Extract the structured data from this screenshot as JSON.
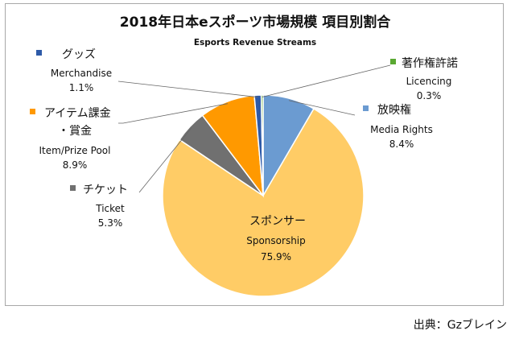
{
  "chart_data": {
    "type": "pie",
    "title": "2018年日本eスポーツ市場規模 項目別割合",
    "subtitle": "Esports Revenue Streams",
    "slices": [
      {
        "name_jp": "放映権",
        "name_en": "Media Rights",
        "value": 8.4,
        "label": "8.4%",
        "color": "#6b9bd1"
      },
      {
        "name_jp": "スポンサー",
        "name_en": "Sponsorship",
        "value": 75.9,
        "label": "75.9%",
        "color": "#ffcc66"
      },
      {
        "name_jp": "チケット",
        "name_en": "Ticket",
        "value": 5.3,
        "label": "5.3%",
        "color": "#707070"
      },
      {
        "name_jp": "アイテム課金",
        "name_jp2": "・賞金",
        "name_en": "Item/Prize Pool",
        "value": 8.9,
        "label": "8.9%",
        "color": "#ff9900"
      },
      {
        "name_jp": "グッズ",
        "name_en": "Merchandise",
        "value": 1.1,
        "label": "1.1%",
        "color": "#2e5aa8"
      },
      {
        "name_jp": "著作権許諾",
        "name_en": "Licencing",
        "value": 0.3,
        "label": "0.3%",
        "color": "#5aa832"
      }
    ]
  },
  "source": "出典：Gzブレイン"
}
